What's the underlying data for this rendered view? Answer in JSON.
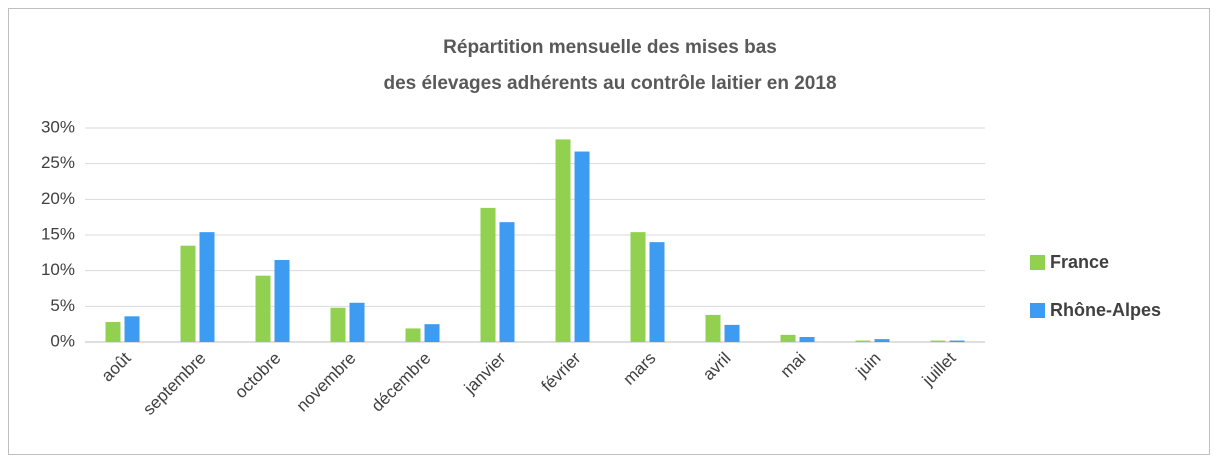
{
  "chart_data": {
    "type": "bar",
    "title": [
      "Répartition mensuelle des mises bas",
      "des élevages adhérents au contrôle laitier en 2018"
    ],
    "categories": [
      "août",
      "septembre",
      "octobre",
      "novembre",
      "décembre",
      "janvier",
      "février",
      "mars",
      "avril",
      "mai",
      "juin",
      "juillet"
    ],
    "series": [
      {
        "name": "France",
        "color": "#92d050",
        "values": [
          2.8,
          13.5,
          9.3,
          4.8,
          1.9,
          18.8,
          28.4,
          15.4,
          3.8,
          1.0,
          0.2,
          0.2
        ]
      },
      {
        "name": "Rhône-Alpes",
        "color": "#3d9bf2",
        "values": [
          3.6,
          15.4,
          11.5,
          5.5,
          2.5,
          16.8,
          26.7,
          14.0,
          2.4,
          0.7,
          0.4,
          0.2
        ]
      }
    ],
    "ylim": [
      0,
      30
    ],
    "yticks": [
      {
        "value": 0,
        "label": "0%"
      },
      {
        "value": 5,
        "label": "5%"
      },
      {
        "value": 10,
        "label": "10%"
      },
      {
        "value": 15,
        "label": "15%"
      },
      {
        "value": 20,
        "label": "20%"
      },
      {
        "value": 25,
        "label": "25%"
      },
      {
        "value": 30,
        "label": "30%"
      }
    ],
    "grid": true,
    "legend": "right"
  }
}
